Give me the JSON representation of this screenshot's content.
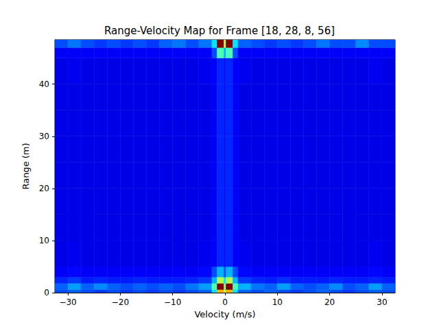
{
  "chart_data": {
    "type": "heatmap",
    "title": "Range-Velocity Map for Frame [18, 28, 8, 56]",
    "x_label": "Velocity (m/s)",
    "y_label": "Range (m)",
    "xlim": [
      -32.5,
      32.5
    ],
    "ylim": [
      0,
      48.5
    ],
    "xticks": [
      {
        "value": -30,
        "label": "−30"
      },
      {
        "value": -20,
        "label": "−20"
      },
      {
        "value": -10,
        "label": "−10"
      },
      0,
      10,
      20,
      30
    ],
    "yticks": [
      0,
      10,
      20,
      30,
      40
    ],
    "grid": false,
    "x_edges": [
      -32.5,
      -30,
      -27.5,
      -25,
      -22.5,
      -20,
      -17.5,
      -15,
      -12.5,
      -10,
      -7.5,
      -5,
      -2.5,
      -1.5,
      -0.2,
      0.2,
      1.5,
      2.5,
      5,
      7.5,
      10,
      12.5,
      15,
      17.5,
      20,
      22.5,
      25,
      27.5,
      30,
      32.5
    ],
    "y_edges": [
      0,
      0.6,
      1.8,
      3,
      5,
      10,
      15,
      20,
      25,
      30,
      35,
      40,
      45,
      47,
      48.5
    ],
    "zlim": [
      0,
      1
    ],
    "cells": [
      [
        0.2,
        0.22,
        0.2,
        0.18,
        0.2,
        0.18,
        0.2,
        0.18,
        0.2,
        0.18,
        0.2,
        0.22,
        0.35,
        0.7,
        0.55,
        0.7,
        0.35,
        0.22,
        0.2,
        0.22,
        0.2,
        0.18,
        0.2,
        0.22,
        0.2,
        0.18,
        0.2,
        0.22,
        0.2
      ],
      [
        0.22,
        0.28,
        0.22,
        0.26,
        0.22,
        0.2,
        0.22,
        0.2,
        0.22,
        0.2,
        0.24,
        0.28,
        0.45,
        1.0,
        0.5,
        1.0,
        0.45,
        0.3,
        0.24,
        0.22,
        0.28,
        0.22,
        0.2,
        0.22,
        0.26,
        0.2,
        0.22,
        0.28,
        0.22
      ],
      [
        0.16,
        0.18,
        0.15,
        0.16,
        0.15,
        0.15,
        0.16,
        0.15,
        0.15,
        0.15,
        0.16,
        0.18,
        0.3,
        0.55,
        0.35,
        0.55,
        0.3,
        0.18,
        0.16,
        0.15,
        0.17,
        0.15,
        0.15,
        0.15,
        0.16,
        0.15,
        0.15,
        0.16,
        0.15
      ],
      [
        0.12,
        0.13,
        0.12,
        0.12,
        0.12,
        0.12,
        0.12,
        0.12,
        0.12,
        0.12,
        0.12,
        0.13,
        0.2,
        0.3,
        0.2,
        0.3,
        0.2,
        0.13,
        0.12,
        0.12,
        0.12,
        0.12,
        0.12,
        0.12,
        0.12,
        0.12,
        0.12,
        0.13,
        0.12
      ],
      [
        0.1,
        0.11,
        0.1,
        0.1,
        0.1,
        0.1,
        0.1,
        0.1,
        0.1,
        0.1,
        0.1,
        0.11,
        0.12,
        0.16,
        0.14,
        0.16,
        0.12,
        0.11,
        0.1,
        0.1,
        0.1,
        0.1,
        0.1,
        0.1,
        0.1,
        0.1,
        0.1,
        0.11,
        0.1
      ],
      [
        0.1,
        0.1,
        0.1,
        0.1,
        0.1,
        0.1,
        0.1,
        0.1,
        0.1,
        0.1,
        0.1,
        0.1,
        0.12,
        0.16,
        0.14,
        0.16,
        0.12,
        0.1,
        0.1,
        0.1,
        0.1,
        0.1,
        0.1,
        0.1,
        0.1,
        0.1,
        0.1,
        0.1,
        0.1
      ],
      [
        0.1,
        0.1,
        0.1,
        0.1,
        0.1,
        0.1,
        0.1,
        0.1,
        0.1,
        0.1,
        0.1,
        0.1,
        0.12,
        0.16,
        0.14,
        0.16,
        0.12,
        0.1,
        0.1,
        0.1,
        0.1,
        0.1,
        0.1,
        0.1,
        0.1,
        0.1,
        0.1,
        0.1,
        0.1
      ],
      [
        0.1,
        0.1,
        0.1,
        0.1,
        0.1,
        0.1,
        0.1,
        0.1,
        0.1,
        0.1,
        0.1,
        0.1,
        0.12,
        0.16,
        0.14,
        0.16,
        0.12,
        0.1,
        0.1,
        0.1,
        0.1,
        0.1,
        0.1,
        0.1,
        0.1,
        0.1,
        0.1,
        0.1,
        0.1
      ],
      [
        0.1,
        0.1,
        0.1,
        0.1,
        0.1,
        0.1,
        0.1,
        0.1,
        0.1,
        0.1,
        0.1,
        0.1,
        0.12,
        0.16,
        0.14,
        0.16,
        0.12,
        0.1,
        0.1,
        0.1,
        0.1,
        0.1,
        0.1,
        0.1,
        0.1,
        0.1,
        0.1,
        0.1,
        0.1
      ],
      [
        0.1,
        0.1,
        0.1,
        0.1,
        0.1,
        0.1,
        0.1,
        0.1,
        0.1,
        0.1,
        0.1,
        0.1,
        0.12,
        0.16,
        0.14,
        0.16,
        0.12,
        0.1,
        0.1,
        0.1,
        0.1,
        0.1,
        0.1,
        0.1,
        0.1,
        0.1,
        0.1,
        0.1,
        0.1
      ],
      [
        0.1,
        0.1,
        0.1,
        0.1,
        0.1,
        0.1,
        0.1,
        0.1,
        0.1,
        0.1,
        0.1,
        0.1,
        0.12,
        0.16,
        0.14,
        0.16,
        0.12,
        0.1,
        0.1,
        0.1,
        0.1,
        0.1,
        0.1,
        0.1,
        0.1,
        0.1,
        0.1,
        0.1,
        0.1
      ],
      [
        0.1,
        0.11,
        0.1,
        0.1,
        0.1,
        0.1,
        0.1,
        0.1,
        0.1,
        0.1,
        0.1,
        0.11,
        0.12,
        0.16,
        0.14,
        0.16,
        0.12,
        0.11,
        0.1,
        0.1,
        0.1,
        0.1,
        0.1,
        0.1,
        0.1,
        0.1,
        0.1,
        0.11,
        0.1
      ],
      [
        0.12,
        0.12,
        0.12,
        0.12,
        0.12,
        0.12,
        0.12,
        0.12,
        0.12,
        0.12,
        0.12,
        0.12,
        0.2,
        0.45,
        0.3,
        0.45,
        0.2,
        0.12,
        0.12,
        0.12,
        0.12,
        0.12,
        0.12,
        0.12,
        0.12,
        0.12,
        0.12,
        0.12,
        0.12
      ],
      [
        0.2,
        0.24,
        0.2,
        0.18,
        0.2,
        0.18,
        0.2,
        0.18,
        0.22,
        0.24,
        0.2,
        0.24,
        0.35,
        1.0,
        0.55,
        1.0,
        0.35,
        0.22,
        0.2,
        0.18,
        0.2,
        0.18,
        0.2,
        0.24,
        0.2,
        0.2,
        0.26,
        0.2,
        0.2
      ]
    ]
  }
}
